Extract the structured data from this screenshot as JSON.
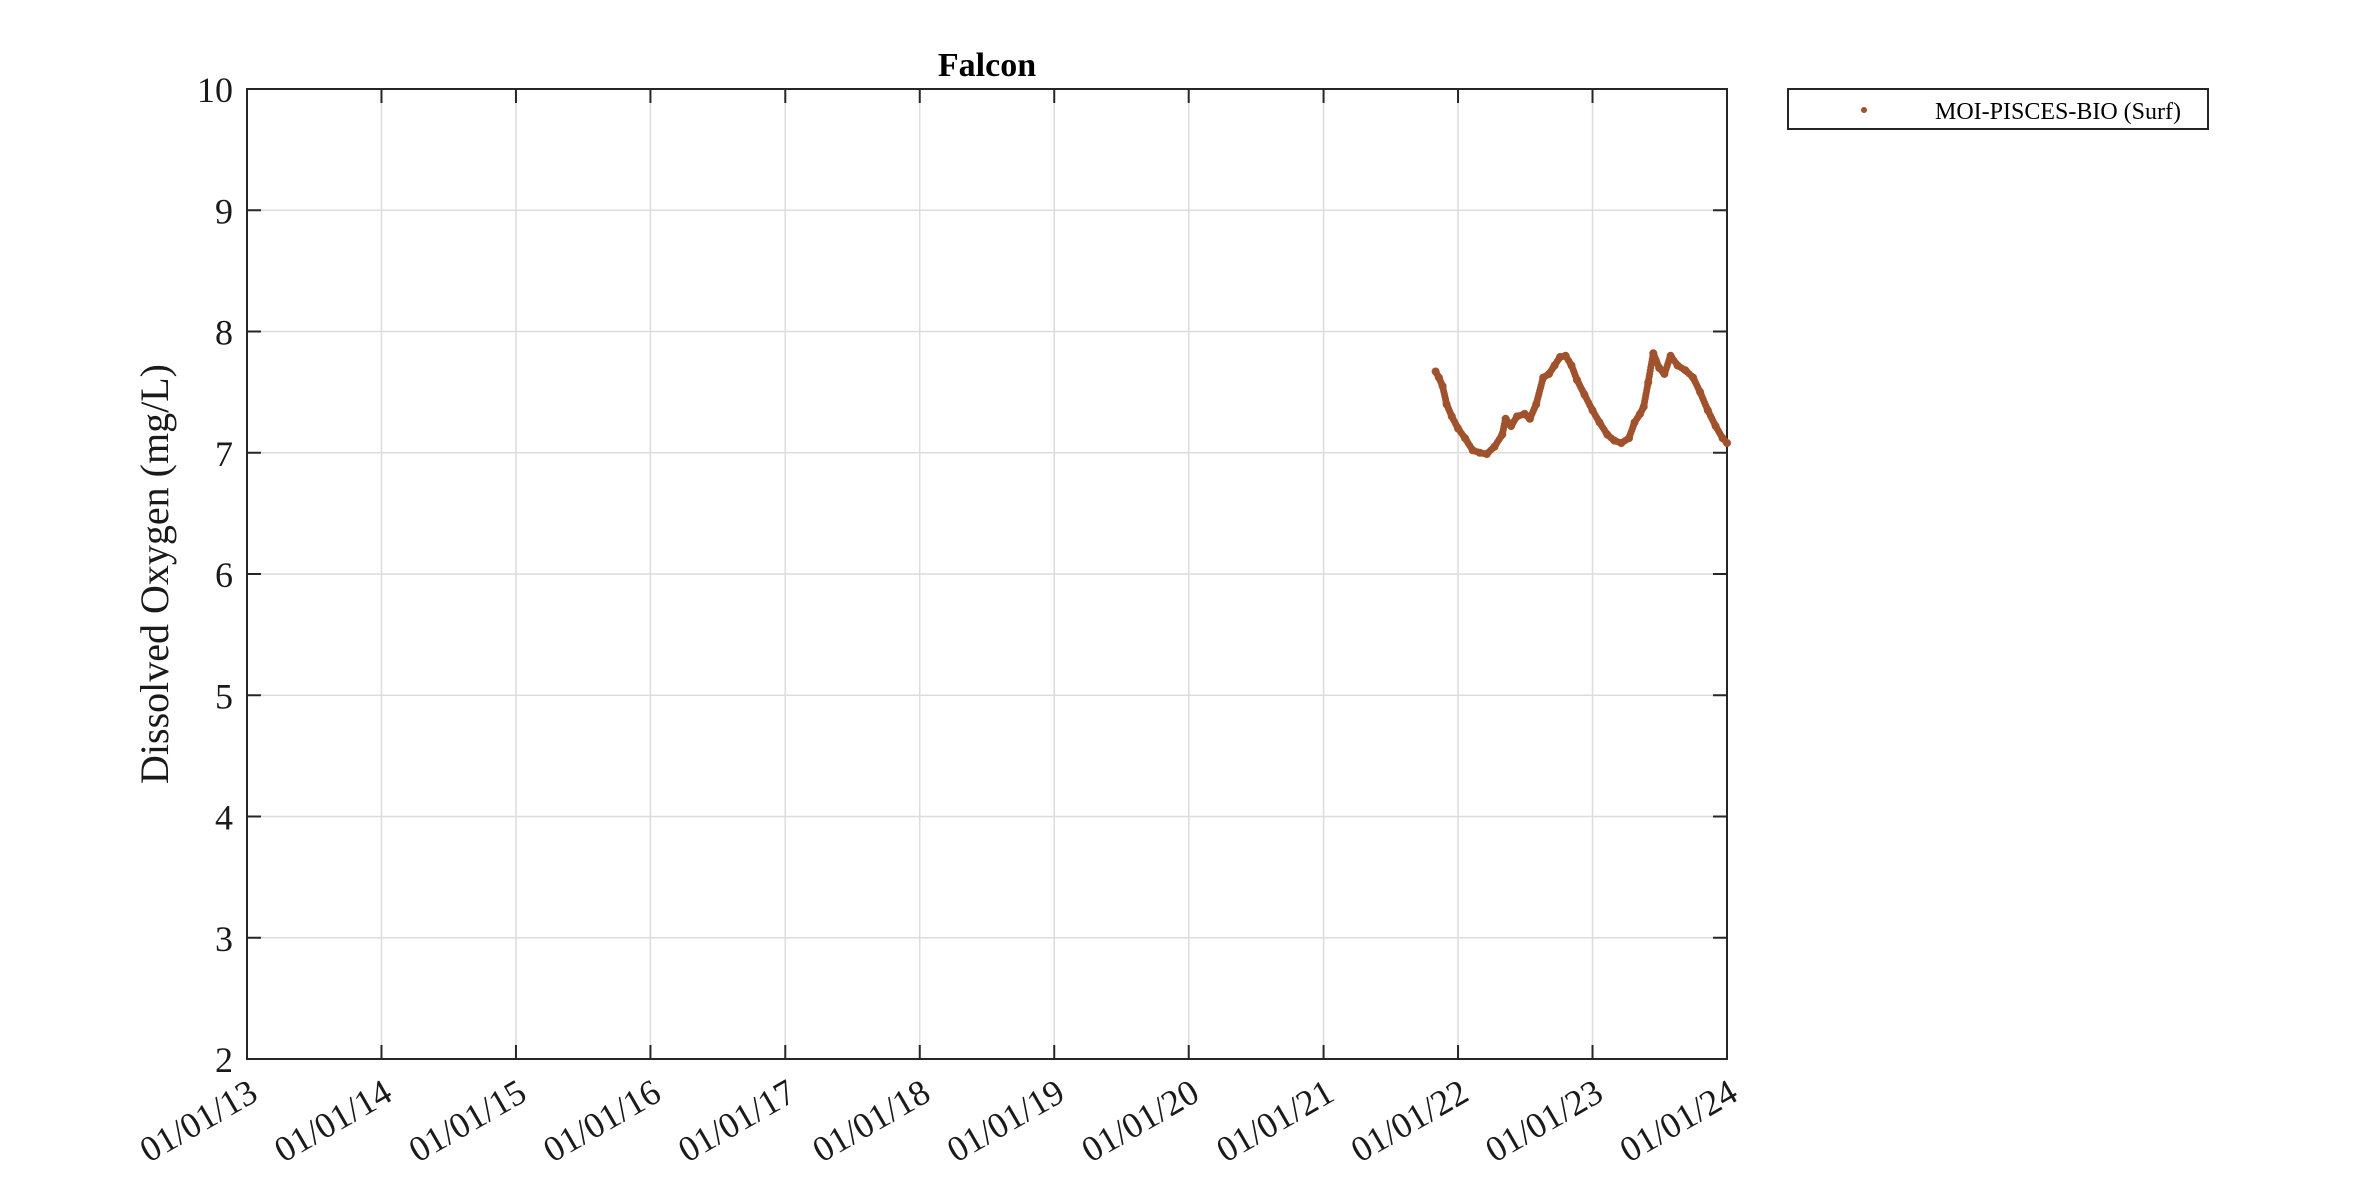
{
  "chart_data": {
    "type": "scatter",
    "title": "Falcon",
    "xlabel": "",
    "ylabel": "Dissolved Oxygen (mg/L)",
    "x_type": "date",
    "xlim": [
      "2013-01-01",
      "2024-01-01"
    ],
    "ylim": [
      2,
      10
    ],
    "x_ticks": [
      "2013-01-01",
      "2014-01-01",
      "2015-01-01",
      "2016-01-01",
      "2017-01-01",
      "2018-01-01",
      "2019-01-01",
      "2020-01-01",
      "2021-01-01",
      "2022-01-01",
      "2023-01-01",
      "2024-01-01"
    ],
    "x_tick_labels": [
      "01/01/13",
      "01/01/14",
      "01/01/15",
      "01/01/16",
      "01/01/17",
      "01/01/18",
      "01/01/19",
      "01/01/20",
      "01/01/21",
      "01/01/22",
      "01/01/23",
      "01/01/24"
    ],
    "y_ticks": [
      2,
      3,
      4,
      5,
      6,
      7,
      8,
      9,
      10
    ],
    "y_tick_labels": [
      "2",
      "3",
      "4",
      "5",
      "6",
      "7",
      "8",
      "9",
      "10"
    ],
    "grid": true,
    "legend": {
      "position": "outside-top-right"
    },
    "series": [
      {
        "name": "MOI-PISCES-BIO (Surf)",
        "color": "#a0522d",
        "marker": "dot",
        "x": [
          "2021-11-01",
          "2021-11-10",
          "2021-11-20",
          "2021-12-01",
          "2021-12-15",
          "2022-01-01",
          "2022-01-20",
          "2022-02-10",
          "2022-03-01",
          "2022-03-20",
          "2022-04-10",
          "2022-05-01",
          "2022-05-10",
          "2022-05-25",
          "2022-06-10",
          "2022-07-01",
          "2022-07-15",
          "2022-08-01",
          "2022-08-20",
          "2022-09-05",
          "2022-09-20",
          "2022-10-05",
          "2022-10-20",
          "2022-11-05",
          "2022-11-20",
          "2022-12-10",
          "2023-01-01",
          "2023-01-20",
          "2023-02-10",
          "2023-03-01",
          "2023-03-20",
          "2023-04-10",
          "2023-04-25",
          "2023-05-10",
          "2023-05-20",
          "2023-06-01",
          "2023-06-15",
          "2023-07-01",
          "2023-07-15",
          "2023-08-01",
          "2023-08-20",
          "2023-09-10",
          "2023-10-01",
          "2023-10-20",
          "2023-11-10",
          "2023-12-01",
          "2023-12-20",
          "2024-01-01"
        ],
        "y": [
          7.67,
          7.62,
          7.55,
          7.4,
          7.3,
          7.2,
          7.12,
          7.02,
          7.0,
          6.99,
          7.05,
          7.15,
          7.28,
          7.22,
          7.3,
          7.32,
          7.28,
          7.4,
          7.62,
          7.65,
          7.72,
          7.79,
          7.8,
          7.72,
          7.6,
          7.48,
          7.35,
          7.25,
          7.15,
          7.1,
          7.08,
          7.12,
          7.25,
          7.32,
          7.38,
          7.58,
          7.82,
          7.7,
          7.65,
          7.8,
          7.72,
          7.68,
          7.62,
          7.5,
          7.35,
          7.22,
          7.12,
          7.08
        ]
      }
    ]
  }
}
